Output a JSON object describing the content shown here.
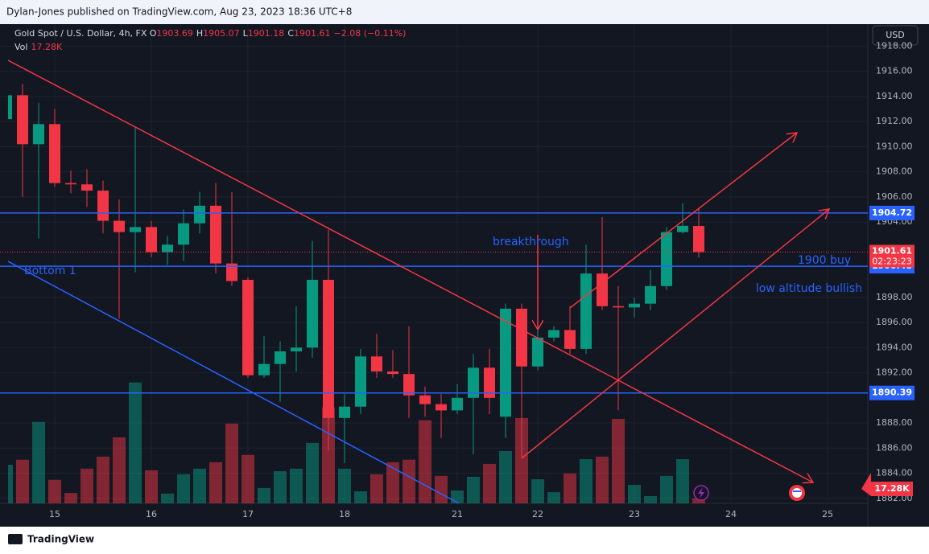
{
  "chart_data": {
    "type": "candlestick",
    "header": "Dylan-Jones published on TradingView.com, Aug 23, 2023 18:36 UTC+8",
    "symbol": "Gold Spot / U.S. Dollar, 4h, FX",
    "legend": {
      "o_label": "O",
      "o": "1903.69",
      "h_label": "H",
      "h": "1905.07",
      "l_label": "L",
      "l": "1901.18",
      "c_label": "C",
      "c": "1901.61",
      "change": "−2.08 (−0.11%)",
      "vol_label": "Vol",
      "vol": "17.28K"
    },
    "currency": "USD",
    "brand": "TradingView",
    "annotations": [
      "breakthrough",
      "Bottom 1",
      "1900 buy",
      "low altitude bullish"
    ],
    "up_color": "#089981",
    "down_color": "#f23645",
    "xlim": [
      0.1,
      53.5
    ],
    "ylim": [
      1881.6,
      1918.8
    ],
    "vlim": [
      0,
      500
    ],
    "grid": true,
    "xticks": [
      {
        "value": 3,
        "label": "15"
      },
      {
        "value": 9,
        "label": "16"
      },
      {
        "value": 15,
        "label": "17"
      },
      {
        "value": 21,
        "label": "18"
      },
      {
        "value": 28,
        "label": "21"
      },
      {
        "value": 33,
        "label": "22"
      },
      {
        "value": 39,
        "label": "23"
      },
      {
        "value": 45,
        "label": "24"
      },
      {
        "value": 51,
        "label": "25"
      }
    ],
    "yticks": [
      {
        "value": 1882,
        "label": "1882.00"
      },
      {
        "value": 1884,
        "label": "1884.00"
      },
      {
        "value": 1886,
        "label": "1886.00"
      },
      {
        "value": 1888,
        "label": "1888.00"
      },
      {
        "value": 1892,
        "label": "1892.00"
      },
      {
        "value": 1894,
        "label": "1894.00"
      },
      {
        "value": 1896,
        "label": "1896.00"
      },
      {
        "value": 1898,
        "label": "1898.00"
      },
      {
        "value": 1904,
        "label": "1904.00"
      },
      {
        "value": 1906,
        "label": "1906.00"
      },
      {
        "value": 1908,
        "label": "1908.00"
      },
      {
        "value": 1910,
        "label": "1910.00"
      },
      {
        "value": 1912,
        "label": "1912.00"
      },
      {
        "value": 1914,
        "label": "1914.00"
      },
      {
        "value": 1916,
        "label": "1916.00"
      },
      {
        "value": 1918,
        "label": "1918.00"
      }
    ],
    "hlines": [
      1904.72,
      1900.48,
      1890.39
    ],
    "last_price": 1901.61,
    "countdown": "02:23:23",
    "last_volume_label": "17.28K",
    "open": [
      1912.2,
      1914.1,
      1910.2,
      1911.8,
      1907.1,
      1907.0,
      1906.5,
      1904.1,
      1903.2,
      1903.6,
      1901.6,
      1902.2,
      1903.9,
      1905.3,
      1900.7,
      1899.4,
      1891.8,
      1892.7,
      1893.7,
      1894.0,
      1899.4,
      1888.4,
      1889.3,
      1893.3,
      1892.1,
      1891.9,
      1890.2,
      1889.5,
      1889.0,
      1890.0,
      1892.4,
      1888.5,
      1897.1,
      1892.5,
      1894.8,
      1895.4,
      1893.9,
      1899.9,
      1897.3,
      1897.2,
      1897.5,
      1898.9,
      1903.2,
      1903.69
    ],
    "high": [
      1914.5,
      1915.0,
      1913.5,
      1913.0,
      1908.1,
      1908.2,
      1907.3,
      1905.8,
      1911.6,
      1904.1,
      1902.9,
      1905.0,
      1906.4,
      1907.1,
      1906.4,
      1899.6,
      1894.9,
      1894.5,
      1897.3,
      1902.5,
      1903.4,
      1890.3,
      1893.9,
      1895.1,
      1893.8,
      1895.7,
      1890.9,
      1890.3,
      1891.1,
      1893.5,
      1893.9,
      1897.5,
      1897.5,
      1895.4,
      1895.7,
      1897.3,
      1902.2,
      1904.4,
      1898.9,
      1898.0,
      1900.2,
      1903.6,
      1905.5,
      1905.07
    ],
    "low": [
      1911.5,
      1906.0,
      1902.7,
      1906.8,
      1906.3,
      1905.2,
      1903.1,
      1896.3,
      1900.0,
      1901.2,
      1900.6,
      1900.9,
      1903.1,
      1899.9,
      1898.9,
      1891.6,
      1891.6,
      1889.7,
      1892.1,
      1893.2,
      1885.8,
      1884.8,
      1888.7,
      1891.6,
      1891.6,
      1888.4,
      1888.5,
      1886.8,
      1888.7,
      1885.5,
      1888.7,
      1886.8,
      1885.2,
      1892.2,
      1894.5,
      1893.5,
      1893.5,
      1897.0,
      1889.0,
      1896.4,
      1897.0,
      1898.6,
      1903.1,
      1901.18
    ],
    "close": [
      1914.1,
      1910.2,
      1911.8,
      1907.1,
      1907.0,
      1906.5,
      1904.1,
      1903.2,
      1903.6,
      1901.6,
      1902.2,
      1903.9,
      1905.3,
      1900.7,
      1899.3,
      1891.8,
      1892.7,
      1893.7,
      1894.0,
      1899.4,
      1888.4,
      1889.3,
      1893.3,
      1892.1,
      1891.9,
      1890.2,
      1889.5,
      1889.0,
      1890.0,
      1892.4,
      1890.0,
      1897.1,
      1892.5,
      1894.8,
      1895.4,
      1893.9,
      1899.9,
      1897.3,
      1897.2,
      1897.5,
      1898.9,
      1903.2,
      1903.7,
      1901.61
    ],
    "volume": [
      138,
      156,
      291,
      84,
      37,
      124,
      167,
      236,
      432,
      118,
      35,
      104,
      124,
      147,
      285,
      173,
      55,
      115,
      124,
      216,
      343,
      124,
      43,
      104,
      147,
      156,
      297,
      98,
      46,
      95,
      141,
      187,
      305,
      86,
      40,
      107,
      158,
      167,
      302,
      66,
      26,
      98,
      158,
      17.28
    ]
  }
}
